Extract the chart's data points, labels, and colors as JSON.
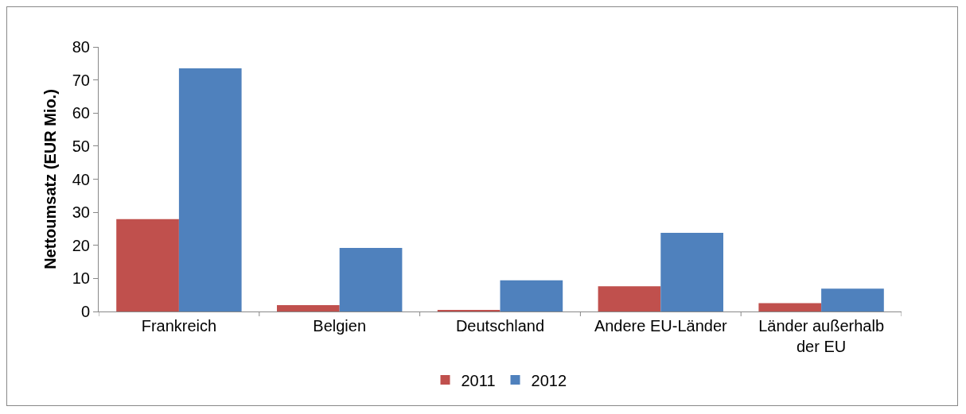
{
  "chart_data": {
    "type": "bar",
    "ylabel": "Nettoumsatz (EUR Mio.)",
    "categories": [
      "Frankreich",
      "Belgien",
      "Deutschland",
      "Andere EU-Länder",
      "Länder außerhalb der EU"
    ],
    "series": [
      {
        "name": "2011",
        "color": "#c0504d",
        "values": [
          27.9,
          1.9,
          0.5,
          7.6,
          2.5
        ]
      },
      {
        "name": "2012",
        "color": "#4f81bd",
        "values": [
          73.5,
          19.2,
          9.4,
          23.8,
          6.9
        ]
      }
    ],
    "ylim": [
      0,
      80
    ],
    "yticks": [
      0,
      10,
      20,
      30,
      40,
      50,
      60,
      70,
      80
    ],
    "grid": false,
    "legend": "bottom"
  }
}
